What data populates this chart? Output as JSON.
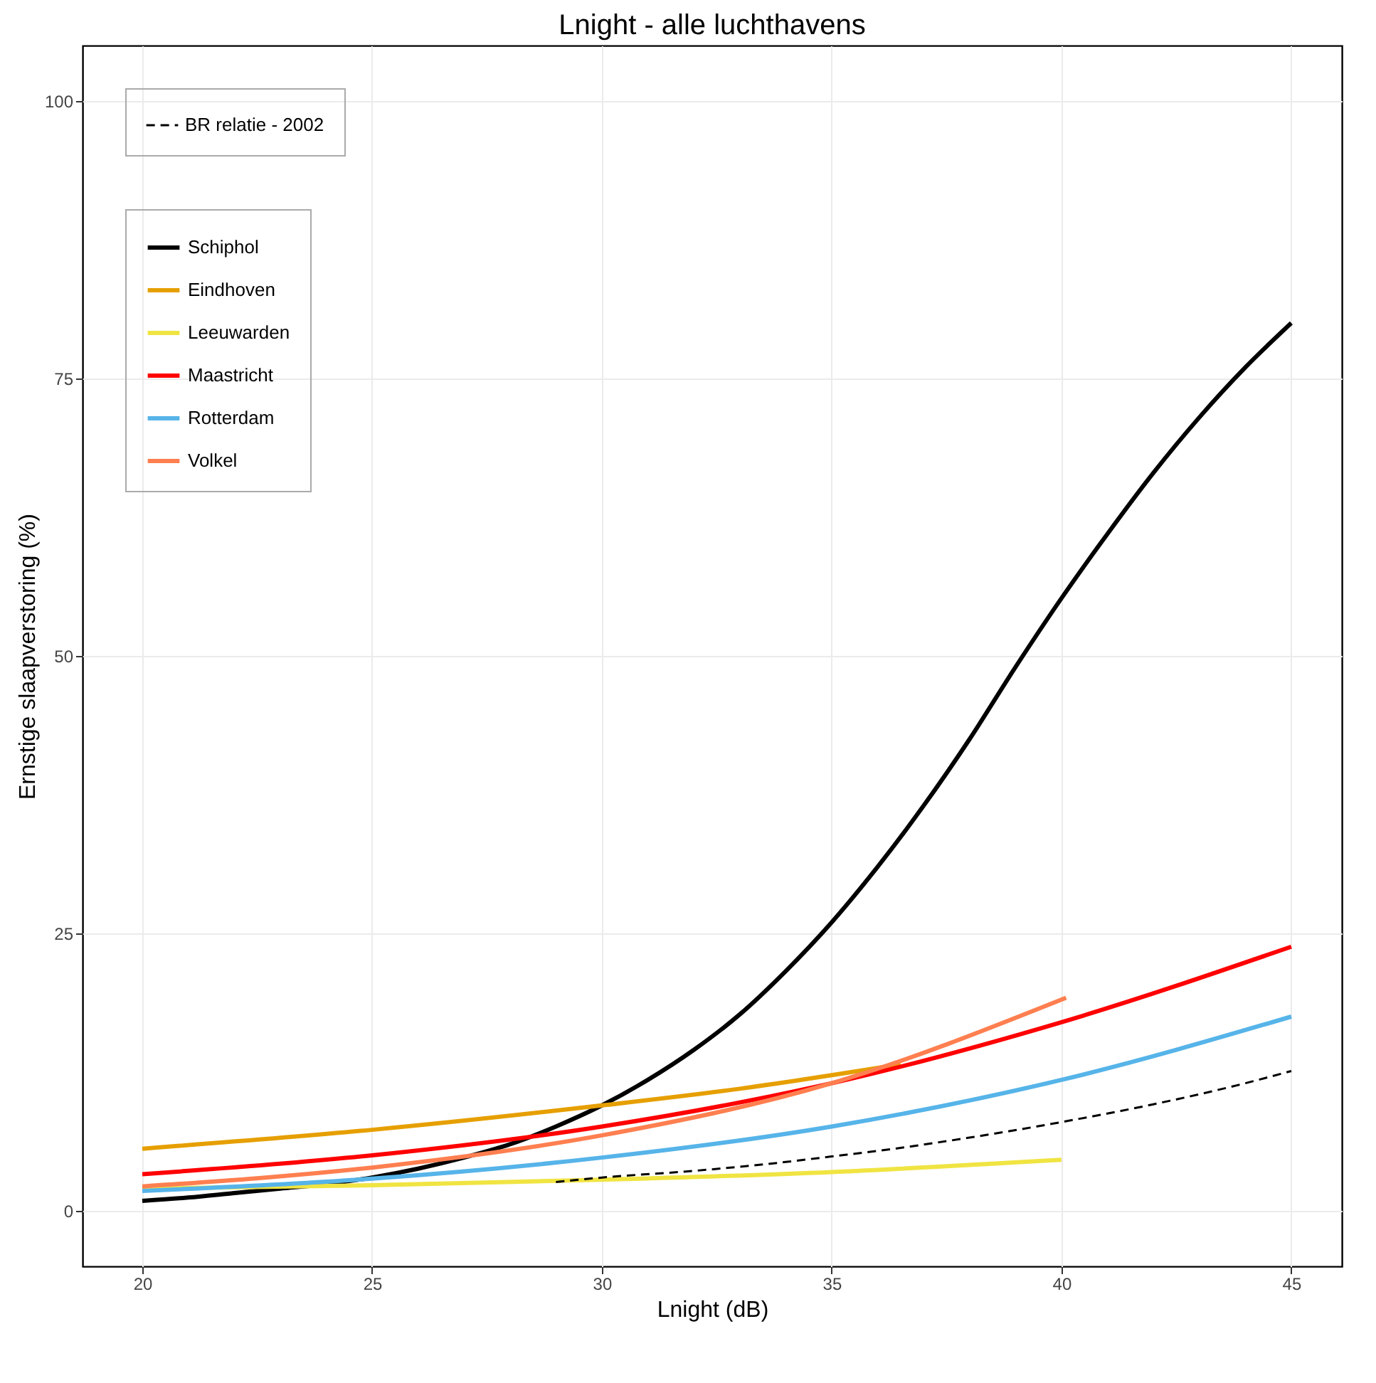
{
  "chart_data": {
    "type": "line",
    "title": "Lnight - alle luchthavens",
    "xlabel": "Lnight (dB)",
    "ylabel": "Ernstige slaapverstoring (%)",
    "xlim": [
      18.7,
      46.1
    ],
    "ylim": [
      -5,
      105
    ],
    "xticks": [
      20,
      25,
      30,
      35,
      40,
      45
    ],
    "yticks": [
      0,
      25,
      50,
      75,
      100
    ],
    "grid": true,
    "legend": "top left",
    "series": [
      {
        "name": "BR relatie - 2002",
        "color": "#000000",
        "line_style": "dashed",
        "x": [
          29,
          30,
          32,
          34,
          35,
          36,
          38,
          40,
          42,
          44,
          45
        ],
        "values": [
          2.6,
          3.0,
          3.6,
          4.4,
          4.9,
          5.4,
          6.6,
          8.0,
          9.6,
          11.5,
          12.6
        ]
      },
      {
        "name": "Schiphol",
        "color": "#000000",
        "x": [
          20,
          21,
          22,
          23,
          24,
          25,
          26,
          27,
          28,
          29,
          30,
          31,
          32,
          33,
          34,
          35,
          36,
          37,
          38,
          39,
          40,
          41,
          42,
          43,
          44,
          45
        ],
        "values": [
          0.9,
          1.2,
          1.6,
          2.0,
          2.4,
          3.0,
          3.8,
          4.8,
          6.0,
          7.6,
          9.5,
          11.8,
          14.5,
          17.7,
          21.6,
          26,
          31,
          36.5,
          42.5,
          49,
          55.2,
          61,
          66.5,
          71.5,
          76,
          80
        ]
      },
      {
        "name": "Eindhoven",
        "color": "#e69f00",
        "x": [
          20,
          25,
          30,
          33,
          36.5
        ],
        "values": [
          5.6,
          7.3,
          9.5,
          11.0,
          13.2
        ]
      },
      {
        "name": "Leeuwarden",
        "color": "#f0e442",
        "x": [
          20,
          25,
          30,
          35,
          40
        ],
        "values": [
          2.0,
          2.3,
          2.8,
          3.5,
          4.6
        ]
      },
      {
        "name": "Maastricht",
        "color": "#ff0000",
        "x": [
          20,
          25,
          30,
          35,
          40,
          45
        ],
        "values": [
          3.3,
          5.0,
          7.6,
          11.5,
          17,
          23.8
        ]
      },
      {
        "name": "Rotterdam",
        "color": "#56b4e9",
        "x": [
          20,
          25,
          30,
          35,
          40,
          45
        ],
        "values": [
          1.8,
          2.9,
          4.8,
          7.6,
          11.8,
          17.5
        ]
      },
      {
        "name": "Volkel",
        "color": "#ff7f50",
        "x": [
          20,
          25,
          30,
          35,
          40.1
        ],
        "values": [
          2.2,
          3.9,
          6.8,
          11.5,
          19.2
        ]
      }
    ]
  }
}
